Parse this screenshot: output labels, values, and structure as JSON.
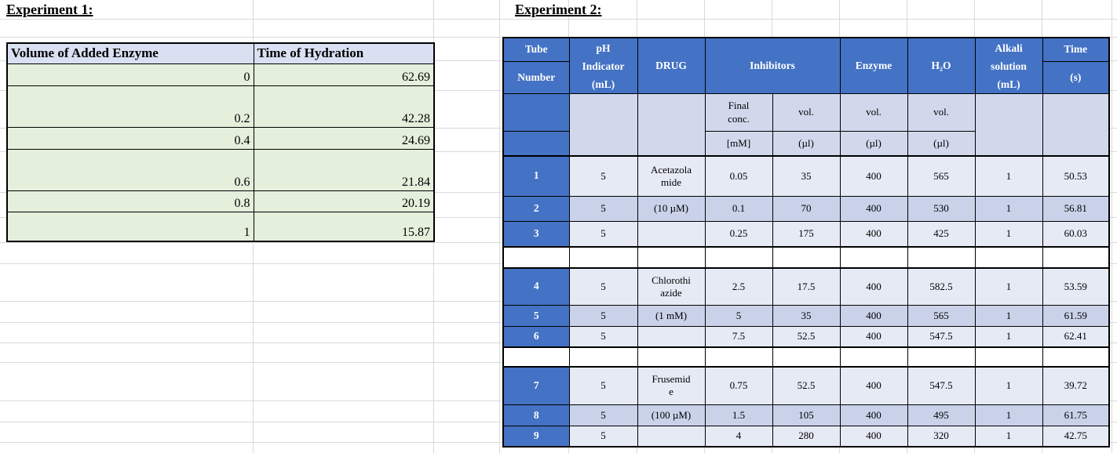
{
  "experiment1": {
    "title": "Experiment 1:",
    "columns": [
      "Volume of Added Enzyme",
      "Time of Hydration"
    ],
    "rows": [
      {
        "volume": "0",
        "time": "62.69"
      },
      {
        "volume": "0.2",
        "time": "42.28"
      },
      {
        "volume": "0.4",
        "time": "24.69"
      },
      {
        "volume": "0.6",
        "time": "21.84"
      },
      {
        "volume": "0.8",
        "time": "20.19"
      },
      {
        "volume": "1",
        "time": "15.87"
      }
    ],
    "colors": {
      "header_bg": "#d9e0f2",
      "row_bg": "#e4efdc"
    }
  },
  "experiment2": {
    "title": "Experiment 2:",
    "header": {
      "tube": "Tube",
      "tube_line2": "Number",
      "ph_indicator": "pH\nIndicator\n(mL)",
      "drug": "DRUG",
      "inhibitors": "Inhibitors",
      "enzyme": "Enzyme",
      "h2o": "H₂O",
      "alkali": "Alkali\nsolution\n(mL)",
      "time": "Time",
      "time_unit": "(s)",
      "final_conc": "Final\nconc.",
      "final_conc_unit": "[mM]",
      "vol": "vol.",
      "vol_unit": "(µl)"
    },
    "rows": [
      {
        "tube": "1",
        "ph": "5",
        "drug": "Acetazola\nmide",
        "final_conc": "0.05",
        "inhibitor_vol": "35",
        "enzyme_vol": "400",
        "h2o_vol": "565",
        "alkali": "1",
        "time": "50.53"
      },
      {
        "tube": "2",
        "ph": "5",
        "drug": "(10 µM)",
        "final_conc": "0.1",
        "inhibitor_vol": "70",
        "enzyme_vol": "400",
        "h2o_vol": "530",
        "alkali": "1",
        "time": "56.81"
      },
      {
        "tube": "3",
        "ph": "5",
        "drug": "",
        "final_conc": "0.25",
        "inhibitor_vol": "175",
        "enzyme_vol": "400",
        "h2o_vol": "425",
        "alkali": "1",
        "time": "60.03"
      },
      {
        "tube": "4",
        "ph": "5",
        "drug": "Chlorothi\nazide",
        "final_conc": "2.5",
        "inhibitor_vol": "17.5",
        "enzyme_vol": "400",
        "h2o_vol": "582.5",
        "alkali": "1",
        "time": "53.59"
      },
      {
        "tube": "5",
        "ph": "5",
        "drug": "(1 mM)",
        "final_conc": "5",
        "inhibitor_vol": "35",
        "enzyme_vol": "400",
        "h2o_vol": "565",
        "alkali": "1",
        "time": "61.59"
      },
      {
        "tube": "6",
        "ph": "5",
        "drug": "",
        "final_conc": "7.5",
        "inhibitor_vol": "52.5",
        "enzyme_vol": "400",
        "h2o_vol": "547.5",
        "alkali": "1",
        "time": "62.41"
      },
      {
        "tube": "7",
        "ph": "5",
        "drug": "Frusemid\ne",
        "final_conc": "0.75",
        "inhibitor_vol": "52.5",
        "enzyme_vol": "400",
        "h2o_vol": "547.5",
        "alkali": "1",
        "time": "39.72"
      },
      {
        "tube": "8",
        "ph": "5",
        "drug": "(100 µM)",
        "final_conc": "1.5",
        "inhibitor_vol": "105",
        "enzyme_vol": "400",
        "h2o_vol": "495",
        "alkali": "1",
        "time": "61.75"
      },
      {
        "tube": "9",
        "ph": "5",
        "drug": "",
        "final_conc": "4",
        "inhibitor_vol": "280",
        "enzyme_vol": "400",
        "h2o_vol": "320",
        "alkali": "1",
        "time": "42.75"
      }
    ],
    "colors": {
      "header_bg": "#4472c4",
      "header_text": "#ffffff",
      "subheader_bg": "#d2d8ec",
      "row_light": "#e6eaf5",
      "row_dark": "#c9d2e9",
      "gridline": "#d9d9d9"
    }
  }
}
